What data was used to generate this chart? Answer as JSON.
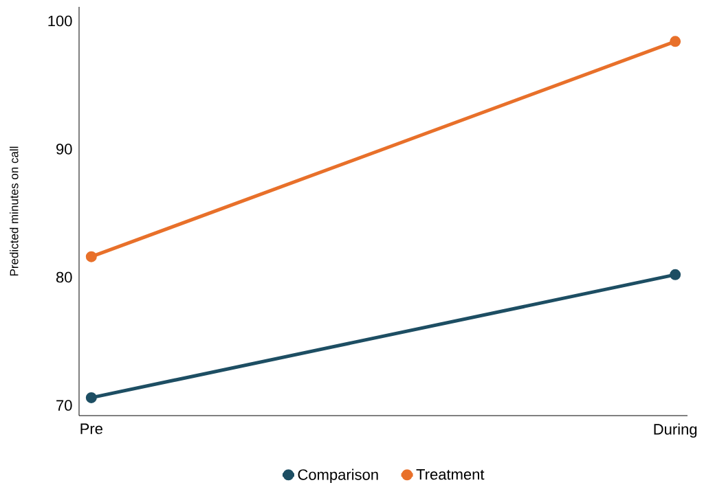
{
  "chart_data": {
    "type": "line",
    "ylabel": "Predicted minutes on call",
    "categories": [
      "Pre",
      "During"
    ],
    "series": [
      {
        "name": "Comparison",
        "color": "#1d4e63",
        "values": [
          70.6,
          80.2
        ]
      },
      {
        "name": "Treatment",
        "color": "#e8702a",
        "values": [
          81.6,
          98.4
        ]
      }
    ],
    "ylim": [
      69.2,
      101.1
    ],
    "yticks": [
      70,
      80,
      90,
      100
    ],
    "legend": "bottom",
    "marker": "circle",
    "line_style": "solid"
  }
}
